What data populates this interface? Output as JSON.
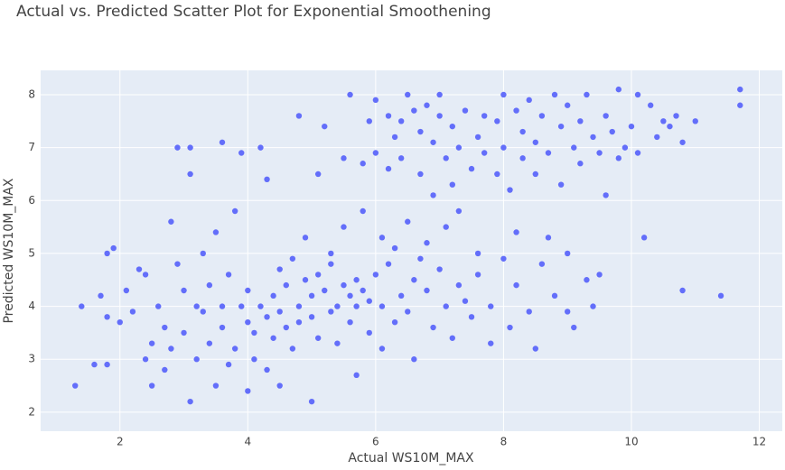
{
  "chart_data": {
    "type": "scatter",
    "title": "Actual vs. Predicted Scatter Plot for Exponential Smoothening",
    "x_label": "Actual WS10M_MAX",
    "y_label": "Predicted WS10M_MAX",
    "color": "#636efa",
    "grid": true,
    "xlim": [
      0.76,
      12.36
    ],
    "ylim": [
      1.64,
      8.46
    ],
    "xticks": [
      2,
      4,
      6,
      8,
      10,
      12
    ],
    "yticks": [
      2,
      3,
      4,
      5,
      6,
      7,
      8
    ],
    "x": [
      1.3,
      1.4,
      1.6,
      1.7,
      1.8,
      1.8,
      1.8,
      1.9,
      2.0,
      2.1,
      2.2,
      2.3,
      2.4,
      2.4,
      2.5,
      2.5,
      2.6,
      2.7,
      2.7,
      2.8,
      2.8,
      2.9,
      2.9,
      3.0,
      3.0,
      3.1,
      3.1,
      3.1,
      3.2,
      3.2,
      3.3,
      3.3,
      3.4,
      3.4,
      3.5,
      3.5,
      3.6,
      3.6,
      3.6,
      3.7,
      3.7,
      3.8,
      3.8,
      3.9,
      3.9,
      4.0,
      4.0,
      4.0,
      4.1,
      4.1,
      4.2,
      4.2,
      4.3,
      4.3,
      4.3,
      4.4,
      4.4,
      4.5,
      4.5,
      4.5,
      4.6,
      4.6,
      4.7,
      4.7,
      4.8,
      4.8,
      4.8,
      4.9,
      4.9,
      5.0,
      5.0,
      5.0,
      5.1,
      5.1,
      5.1,
      5.2,
      5.2,
      5.3,
      5.3,
      5.3,
      5.4,
      5.4,
      5.5,
      5.5,
      5.5,
      5.6,
      5.6,
      5.6,
      5.7,
      5.7,
      5.7,
      5.8,
      5.8,
      5.8,
      5.9,
      5.9,
      5.9,
      6.0,
      6.0,
      6.0,
      6.1,
      6.1,
      6.1,
      6.2,
      6.2,
      6.2,
      6.3,
      6.3,
      6.3,
      6.4,
      6.4,
      6.4,
      6.5,
      6.5,
      6.5,
      6.6,
      6.6,
      6.6,
      6.7,
      6.7,
      6.7,
      6.8,
      6.8,
      6.8,
      6.9,
      6.9,
      6.9,
      7.0,
      7.0,
      7.0,
      7.1,
      7.1,
      7.1,
      7.2,
      7.2,
      7.2,
      7.3,
      7.3,
      7.3,
      7.4,
      7.4,
      7.5,
      7.5,
      7.6,
      7.6,
      7.6,
      7.7,
      7.7,
      7.8,
      7.8,
      7.9,
      7.9,
      8.0,
      8.0,
      8.0,
      8.1,
      8.1,
      8.2,
      8.2,
      8.2,
      8.3,
      8.3,
      8.4,
      8.4,
      8.5,
      8.5,
      8.5,
      8.6,
      8.6,
      8.7,
      8.7,
      8.8,
      8.8,
      8.9,
      8.9,
      9.0,
      9.0,
      9.0,
      9.1,
      9.1,
      9.2,
      9.2,
      9.3,
      9.3,
      9.4,
      9.4,
      9.5,
      9.5,
      9.6,
      9.6,
      9.7,
      9.8,
      9.8,
      9.9,
      10.0,
      10.1,
      10.1,
      10.2,
      10.3,
      10.4,
      10.5,
      10.6,
      10.7,
      10.8,
      10.8,
      11.0,
      11.4,
      11.7,
      11.7
    ],
    "values": [
      2.5,
      4.0,
      2.9,
      4.2,
      3.8,
      2.9,
      5.0,
      5.1,
      3.7,
      4.3,
      3.9,
      4.7,
      4.6,
      3.0,
      3.3,
      2.5,
      4.0,
      3.6,
      2.8,
      3.2,
      5.6,
      7.0,
      4.8,
      3.5,
      4.3,
      2.2,
      6.5,
      7.0,
      3.0,
      4.0,
      3.9,
      5.0,
      4.4,
      3.3,
      2.5,
      5.4,
      4.0,
      3.6,
      7.1,
      4.6,
      2.9,
      3.2,
      5.8,
      4.0,
      6.9,
      2.4,
      3.7,
      4.3,
      3.5,
      3.0,
      4.0,
      7.0,
      3.8,
      2.8,
      6.4,
      4.2,
      3.4,
      3.9,
      4.7,
      2.5,
      3.6,
      4.4,
      3.2,
      4.9,
      4.0,
      7.6,
      3.7,
      4.5,
      5.3,
      2.2,
      3.8,
      4.2,
      6.5,
      4.6,
      3.4,
      4.3,
      7.4,
      3.9,
      5.0,
      4.8,
      4.0,
      3.3,
      4.4,
      5.5,
      6.8,
      8.0,
      4.2,
      3.7,
      4.5,
      4.0,
      2.7,
      4.3,
      6.7,
      5.8,
      4.1,
      3.5,
      7.5,
      4.6,
      6.9,
      7.9,
      4.0,
      5.3,
      3.2,
      7.6,
      6.6,
      4.8,
      3.7,
      7.2,
      5.1,
      7.5,
      4.2,
      6.8,
      3.9,
      5.6,
      8.0,
      7.7,
      4.5,
      3.0,
      6.5,
      4.9,
      7.3,
      7.8,
      4.3,
      5.2,
      7.1,
      3.6,
      6.1,
      7.6,
      4.7,
      8.0,
      6.8,
      4.0,
      5.5,
      7.4,
      3.4,
      6.3,
      4.4,
      7.0,
      5.8,
      7.7,
      4.1,
      6.6,
      3.8,
      7.2,
      4.6,
      5.0,
      7.6,
      6.9,
      4.0,
      3.3,
      7.5,
      6.5,
      8.0,
      4.9,
      7.0,
      3.6,
      6.2,
      7.7,
      4.4,
      5.4,
      7.3,
      6.8,
      3.9,
      7.9,
      6.5,
      3.2,
      7.1,
      4.8,
      7.6,
      5.3,
      6.9,
      8.0,
      4.2,
      7.4,
      6.3,
      3.9,
      7.8,
      5.0,
      7.0,
      3.6,
      6.7,
      7.5,
      4.5,
      8.0,
      7.2,
      4.0,
      6.9,
      4.6,
      7.6,
      6.1,
      7.3,
      8.1,
      6.8,
      7.0,
      7.4,
      6.9,
      8.0,
      5.3,
      7.8,
      7.2,
      7.5,
      7.4,
      7.6,
      7.1,
      4.3,
      7.5,
      4.2,
      8.1,
      7.8
    ]
  }
}
